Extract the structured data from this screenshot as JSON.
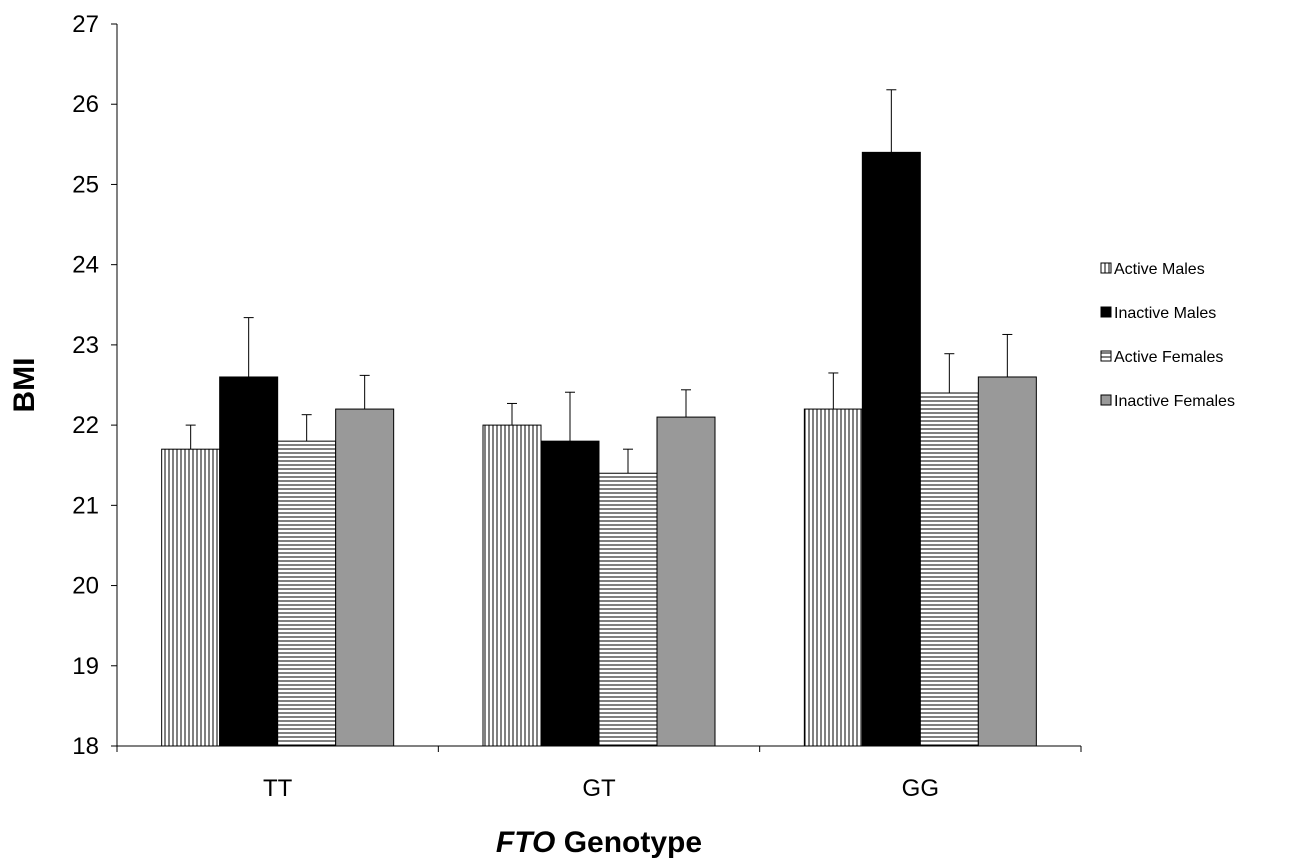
{
  "chart_data": {
    "type": "bar",
    "categories": [
      "TT",
      "GT",
      "GG"
    ],
    "series": [
      {
        "name": "Active Males",
        "values": [
          21.7,
          22.0,
          22.2
        ],
        "error": [
          0.3,
          0.27,
          0.45
        ],
        "pattern": "vertical-stripes"
      },
      {
        "name": "Inactive Males",
        "values": [
          22.6,
          21.8,
          25.4
        ],
        "error": [
          0.74,
          0.61,
          0.78
        ],
        "pattern": "solid-black"
      },
      {
        "name": "Active Females",
        "values": [
          21.8,
          21.4,
          22.4
        ],
        "error": [
          0.33,
          0.3,
          0.49
        ],
        "pattern": "horizontal-stripes"
      },
      {
        "name": "Inactive Females",
        "values": [
          22.2,
          22.1,
          22.6
        ],
        "error": [
          0.42,
          0.34,
          0.53
        ],
        "pattern": "solid-gray"
      }
    ],
    "ylim": [
      18,
      27
    ],
    "yticks": [
      "18",
      "19",
      "20",
      "21",
      "22",
      "23",
      "24",
      "25",
      "26",
      "27"
    ],
    "ylabel": "BMI",
    "xlabel_italic": "FTO",
    "xlabel_rest": " Genotype",
    "legend_position": "right",
    "grid": false,
    "colors": {
      "black": "#000000",
      "gray": "#999999",
      "white": "#ffffff"
    }
  }
}
